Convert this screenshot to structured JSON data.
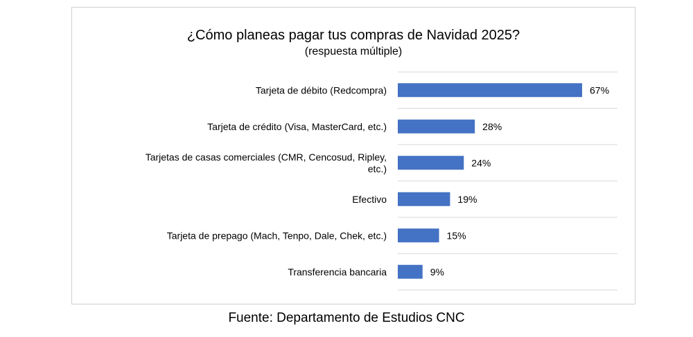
{
  "chart_data": {
    "type": "bar",
    "orientation": "horizontal",
    "title": "¿Cómo planeas pagar tus compras de Navidad 2025?",
    "subtitle": "(respuesta múltiple)",
    "categories": [
      "Tarjeta de débito (Redcompra)",
      "Tarjeta de crédito (Visa, MasterCard, etc.)",
      "Tarjetas de casas comerciales (CMR, Cencosud, Ripley, etc.)",
      "Efectivo",
      "Tarjeta de prepago (Mach, Tenpo, Dale, Chek, etc.)",
      "Transferencia bancaria"
    ],
    "category_lines": [
      [
        "Tarjeta de débito (Redcompra)"
      ],
      [
        "Tarjeta de crédito (Visa, MasterCard, etc.)"
      ],
      [
        "Tarjetas de casas comerciales (CMR, Cencosud, Ripley,",
        "etc.)"
      ],
      [
        "Efectivo"
      ],
      [
        "Tarjeta de prepago (Mach, Tenpo, Dale, Chek, etc.)"
      ],
      [
        "Transferencia bancaria"
      ]
    ],
    "values": [
      67,
      28,
      24,
      19,
      15,
      9
    ],
    "value_labels": [
      "67%",
      "28%",
      "24%",
      "19%",
      "15%",
      "9%"
    ],
    "unit": "%",
    "bar_color": "#4472c4",
    "grid_color": "#d9d9d9",
    "grid": "horizontal separators",
    "legend": "none"
  },
  "footer": {
    "source": "Fuente: Departamento de Estudios CNC"
  }
}
